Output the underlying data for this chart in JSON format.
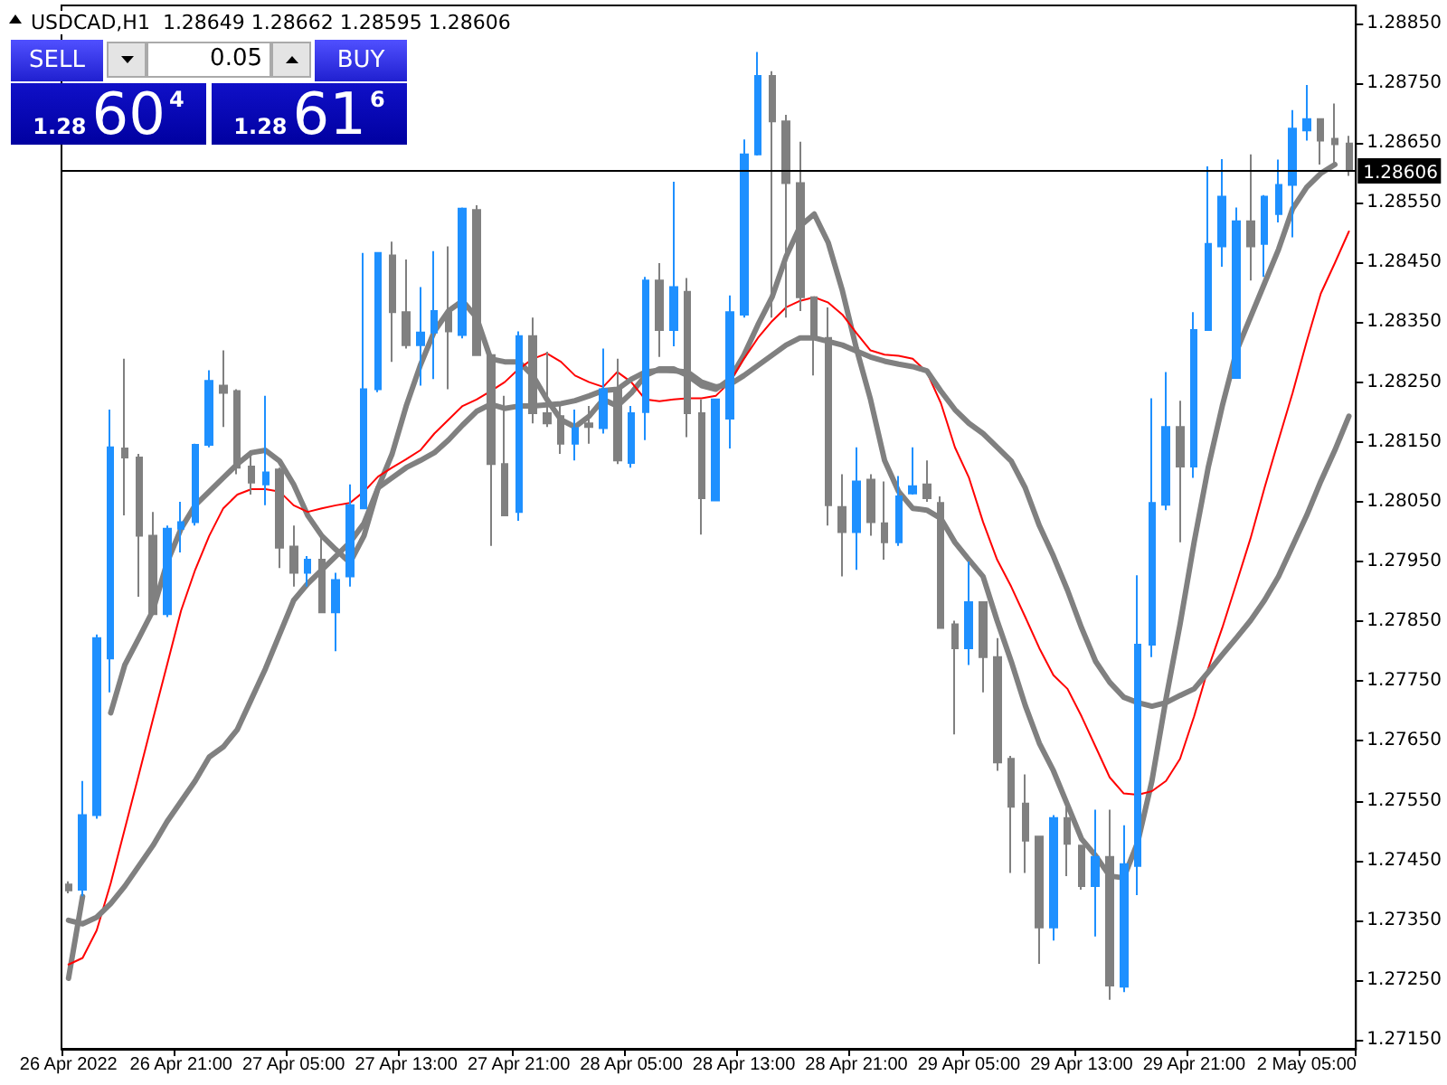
{
  "chart_data": {
    "type": "candlestick",
    "title": "USDCAD,H1  1.28649 1.28662 1.28595 1.28606",
    "annotations": [
      "SELL",
      "0.05",
      "BUY",
      "1.28",
      "60",
      "4",
      "1.28",
      "61",
      "6"
    ],
    "categories": [
      "26 Apr 2022",
      null,
      null,
      null,
      null,
      null,
      null,
      null,
      "26 Apr 21:00",
      null,
      null,
      null,
      null,
      null,
      null,
      null,
      "27 Apr 05:00",
      null,
      null,
      null,
      null,
      null,
      null,
      null,
      "27 Apr 13:00",
      null,
      null,
      null,
      null,
      null,
      null,
      null,
      "27 Apr 21:00",
      null,
      null,
      null,
      null,
      null,
      null,
      null,
      "28 Apr 05:00",
      null,
      null,
      null,
      null,
      null,
      null,
      null,
      "28 Apr 13:00",
      null,
      null,
      null,
      null,
      null,
      null,
      null,
      "28 Apr 21:00",
      null,
      null,
      null,
      null,
      null,
      null,
      null,
      "29 Apr 05:00",
      null,
      null,
      null,
      null,
      null,
      null,
      null,
      "29 Apr 13:00",
      null,
      null,
      null,
      null,
      null,
      null,
      null,
      "29 Apr 21:00",
      null,
      null,
      null,
      null,
      null,
      null,
      null,
      "2 May 05:00",
      null,
      null,
      null
    ],
    "ylim": [
      1.27135,
      1.2888
    ],
    "yticks": [
      {
        "value": 1.2715,
        "label": "1.27150"
      },
      {
        "value": 1.2725,
        "label": "1.27250"
      },
      {
        "value": 1.2735,
        "label": "1.27350"
      },
      {
        "value": 1.2745,
        "label": "1.27450"
      },
      {
        "value": 1.2755,
        "label": "1.27550"
      },
      {
        "value": 1.2765,
        "label": "1.27650"
      },
      {
        "value": 1.2775,
        "label": "1.27750"
      },
      {
        "value": 1.2785,
        "label": "1.27850"
      },
      {
        "value": 1.2795,
        "label": "1.27950"
      },
      {
        "value": 1.2805,
        "label": "1.28050"
      },
      {
        "value": 1.2815,
        "label": "1.28150"
      },
      {
        "value": 1.2825,
        "label": "1.28250"
      },
      {
        "value": 1.2835,
        "label": "1.28350"
      },
      {
        "value": 1.2845,
        "label": "1.28450"
      },
      {
        "value": 1.2855,
        "label": "1.28550"
      },
      {
        "value": 1.2865,
        "label": "1.28650"
      },
      {
        "value": 1.2875,
        "label": "1.28750"
      },
      {
        "value": 1.2885,
        "label": "1.28850"
      }
    ],
    "ref_lines": [
      {
        "axis": "y",
        "value": 1.28606,
        "label": "1.28606",
        "color": "#000000"
      }
    ],
    "series": [
      {
        "ohlc": [
          [
            1.2741,
            1.27415,
            1.27395,
            1.274
          ],
          [
            1.27401,
            1.27583,
            1.2739,
            1.27526
          ],
          [
            1.27526,
            1.27828,
            1.2752,
            1.27822
          ],
          [
            1.27788,
            1.28204,
            1.27731,
            1.28141
          ],
          [
            1.28139,
            1.28289,
            1.28027,
            1.28124
          ],
          [
            1.28124,
            1.2813,
            1.27891,
            1.27993
          ],
          [
            1.27993,
            1.28033,
            1.27862,
            1.27862
          ],
          [
            1.27862,
            1.2801,
            1.27857,
            1.28005
          ],
          [
            1.28005,
            1.2805,
            1.27965,
            1.28016
          ],
          [
            1.28016,
            1.28147,
            1.2801,
            1.28145
          ],
          [
            1.28145,
            1.2827,
            1.28141,
            1.28252
          ],
          [
            1.28244,
            1.28303,
            1.28175,
            1.28232
          ],
          [
            1.28235,
            1.28238,
            1.28096,
            1.28107
          ],
          [
            1.28109,
            1.28136,
            1.28062,
            1.28082
          ],
          [
            1.28079,
            1.28227,
            1.28044,
            1.28099
          ],
          [
            1.28104,
            1.28107,
            1.27939,
            1.27973
          ],
          [
            1.27975,
            1.2801,
            1.27908,
            1.27931
          ],
          [
            1.27931,
            1.27959,
            1.27908,
            1.27953
          ],
          [
            1.27953,
            1.27993,
            1.27865,
            1.27865
          ],
          [
            1.27865,
            1.27931,
            1.278,
            1.27919
          ],
          [
            1.27925,
            1.28079,
            1.27908,
            1.28044
          ],
          [
            1.28039,
            1.28466,
            1.28039,
            1.28238
          ],
          [
            1.28238,
            1.28466,
            1.28233,
            1.28466
          ],
          [
            1.28462,
            1.28485,
            1.28284,
            1.28367
          ],
          [
            1.28367,
            1.28455,
            1.28306,
            1.28312
          ],
          [
            1.28312,
            1.28409,
            1.28244,
            1.28333
          ],
          [
            1.28333,
            1.28469,
            1.28255,
            1.28369
          ],
          [
            1.28367,
            1.28477,
            1.28238,
            1.28335
          ],
          [
            1.28329,
            1.28542,
            1.28323,
            1.2854
          ],
          [
            1.28538,
            1.28546,
            1.28295,
            1.28295
          ],
          [
            1.28295,
            1.28295,
            1.27976,
            1.28113
          ],
          [
            1.28113,
            1.28227,
            1.28027,
            1.28027
          ],
          [
            1.28033,
            1.28335,
            1.28018,
            1.28327
          ],
          [
            1.28327,
            1.28358,
            1.28181,
            1.28198
          ],
          [
            1.28198,
            1.28301,
            1.28175,
            1.28181
          ],
          [
            1.28193,
            1.2821,
            1.2813,
            1.28147
          ],
          [
            1.28147,
            1.28204,
            1.28119,
            1.28173
          ],
          [
            1.28181,
            1.2821,
            1.28147,
            1.28175
          ],
          [
            1.28173,
            1.28306,
            1.28164,
            1.28238
          ],
          [
            1.28238,
            1.28289,
            1.28113,
            1.28119
          ],
          [
            1.28115,
            1.2821,
            1.28107,
            1.28198
          ],
          [
            1.282,
            1.28426,
            1.28153,
            1.2842
          ],
          [
            1.2842,
            1.28449,
            1.28292,
            1.28337
          ],
          [
            1.28337,
            1.28585,
            1.2831,
            1.28409
          ],
          [
            1.28401,
            1.28424,
            1.28158,
            1.28198
          ],
          [
            1.28198,
            1.28221,
            1.27995,
            1.28056
          ],
          [
            1.28052,
            1.28221,
            1.28052,
            1.28221
          ],
          [
            1.28189,
            1.28395,
            1.28139,
            1.28367
          ],
          [
            1.28363,
            1.28656,
            1.28358,
            1.28631
          ],
          [
            1.28631,
            1.28802,
            1.28629,
            1.28762
          ],
          [
            1.28762,
            1.2877,
            1.28358,
            1.28686
          ],
          [
            1.28686,
            1.28697,
            1.28358,
            1.28583
          ],
          [
            1.28583,
            1.28652,
            1.28369,
            1.28392
          ],
          [
            1.28392,
            1.28392,
            1.28261,
            1.28324
          ],
          [
            1.28324,
            1.28375,
            1.2801,
            1.28044
          ],
          [
            1.28041,
            1.28096,
            1.27925,
            1.27999
          ],
          [
            1.27999,
            1.28141,
            1.27936,
            1.28084
          ],
          [
            1.28087,
            1.28096,
            1.27993,
            1.28016
          ],
          [
            1.28014,
            1.28084,
            1.27953,
            1.27982
          ],
          [
            1.27982,
            1.28093,
            1.27976,
            1.28059
          ],
          [
            1.28064,
            1.28141,
            1.28062,
            1.28076
          ],
          [
            1.28079,
            1.28119,
            1.2805,
            1.28056
          ],
          [
            1.28048,
            1.28059,
            1.27839,
            1.27839
          ],
          [
            1.27845,
            1.27851,
            1.27661,
            1.27805
          ],
          [
            1.27805,
            1.2795,
            1.27777,
            1.27882
          ],
          [
            1.27882,
            1.27882,
            1.27731,
            1.2779
          ],
          [
            1.2779,
            1.27822,
            1.276,
            1.27614
          ],
          [
            1.2762,
            1.27625,
            1.27429,
            1.2754
          ],
          [
            1.27545,
            1.27594,
            1.27429,
            1.27483
          ],
          [
            1.2749,
            1.2749,
            1.27277,
            1.27338
          ],
          [
            1.27338,
            1.27526,
            1.27316,
            1.27521
          ],
          [
            1.27521,
            1.27555,
            1.27424,
            1.27478
          ],
          [
            1.27475,
            1.27475,
            1.27401,
            1.27407
          ],
          [
            1.27407,
            1.27535,
            1.27323,
            1.27456
          ],
          [
            1.27456,
            1.27535,
            1.27217,
            1.27241
          ],
          [
            1.27239,
            1.27509,
            1.2723,
            1.27444
          ],
          [
            1.27441,
            1.27927,
            1.27392,
            1.27811
          ],
          [
            1.27811,
            1.28223,
            1.2779,
            1.28048
          ],
          [
            1.28045,
            1.28267,
            1.28036,
            1.28175
          ],
          [
            1.28175,
            1.28219,
            1.27982,
            1.28109
          ],
          [
            1.28109,
            1.28367,
            1.2809,
            1.28337
          ],
          [
            1.28337,
            1.28611,
            1.28337,
            1.28481
          ],
          [
            1.28477,
            1.28623,
            1.28443,
            1.2856
          ],
          [
            1.28257,
            1.28542,
            1.28257,
            1.28519
          ],
          [
            1.28519,
            1.28631,
            1.2842,
            1.28477
          ],
          [
            1.28481,
            1.28563,
            1.28426,
            1.2856
          ],
          [
            1.28531,
            1.28622,
            1.28517,
            1.2858
          ],
          [
            1.2858,
            1.28705,
            1.28492,
            1.28674
          ],
          [
            1.28671,
            1.28747,
            1.28654,
            1.2869
          ],
          [
            1.2869,
            1.2869,
            1.28614,
            1.28654
          ],
          [
            1.28657,
            1.28716,
            1.28614,
            1.28648
          ],
          [
            1.28649,
            1.28662,
            1.28595,
            1.28606
          ]
        ],
        "colors": [
          "#808080",
          "#1e90ff",
          "#1e90ff",
          "#1e90ff",
          "#808080",
          "#808080",
          "#808080",
          "#1e90ff",
          "#1e90ff",
          "#1e90ff",
          "#1e90ff",
          "#808080",
          "#808080",
          "#808080",
          "#1e90ff",
          "#808080",
          "#808080",
          "#1e90ff",
          "#808080",
          "#1e90ff",
          "#1e90ff",
          "#1e90ff",
          "#1e90ff",
          "#808080",
          "#808080",
          "#1e90ff",
          "#1e90ff",
          "#808080",
          "#1e90ff",
          "#808080",
          "#808080",
          "#808080",
          "#1e90ff",
          "#808080",
          "#808080",
          "#808080",
          "#1e90ff",
          "#808080",
          "#1e90ff",
          "#808080",
          "#1e90ff",
          "#1e90ff",
          "#808080",
          "#1e90ff",
          "#808080",
          "#808080",
          "#1e90ff",
          "#1e90ff",
          "#1e90ff",
          "#1e90ff",
          "#808080",
          "#808080",
          "#808080",
          "#808080",
          "#808080",
          "#808080",
          "#1e90ff",
          "#808080",
          "#808080",
          "#1e90ff",
          "#1e90ff",
          "#808080",
          "#808080",
          "#808080",
          "#1e90ff",
          "#808080",
          "#808080",
          "#808080",
          "#808080",
          "#808080",
          "#1e90ff",
          "#808080",
          "#808080",
          "#1e90ff",
          "#808080",
          "#1e90ff",
          "#1e90ff",
          "#1e90ff",
          "#1e90ff",
          "#808080",
          "#1e90ff",
          "#1e90ff",
          "#1e90ff",
          "#1e90ff",
          "#808080",
          "#1e90ff",
          "#1e90ff",
          "#1e90ff",
          "#1e90ff",
          "#808080",
          "#808080",
          "#808080"
        ]
      },
      {
        "type": "line",
        "color": "#808080",
        "values": [
          1.27253,
          1.2739,
          null,
          1.27697,
          1.27777,
          1.27822,
          1.27868,
          1.27948,
          1.28005,
          1.28044,
          1.28067,
          1.2809,
          1.28113,
          1.28132,
          1.28136,
          1.28118,
          1.28079,
          1.28027,
          1.27993,
          1.2797,
          1.27948,
          1.27993,
          1.28073,
          1.2813,
          1.2821,
          1.28278,
          1.28335,
          1.28369,
          1.28386,
          1.28358,
          1.28289,
          1.28284,
          1.28284,
          1.28261,
          1.28221,
          1.28187,
          1.28175,
          1.28193,
          1.28221,
          1.2821,
          1.28232,
          1.28261,
          1.28272,
          1.28272,
          1.28261,
          1.28244,
          1.28238,
          1.28255,
          1.28295,
          1.28346,
          1.28392,
          1.2846,
          1.28511,
          1.28531,
          1.28483,
          1.28403,
          1.28306,
          1.28221,
          1.28119,
          1.28067,
          1.28039,
          1.28036,
          1.28022,
          1.27982,
          1.27953,
          1.27925,
          1.27851,
          1.27783,
          1.27709,
          1.27646,
          1.276,
          1.27543,
          1.27486,
          1.27458,
          1.27424,
          1.27421,
          1.27481,
          1.27583,
          1.2772,
          1.27845,
          1.27982,
          1.28107,
          1.2821,
          1.28301,
          1.28358,
          1.28415,
          1.28472,
          1.2854,
          1.28576,
          1.28599,
          1.28614,
          null
        ]
      },
      {
        "type": "line",
        "color": "#ff0000",
        "values": [
          1.27276,
          1.27287,
          1.27333,
          1.27412,
          1.27503,
          1.27594,
          1.27686,
          1.27777,
          1.27868,
          1.27936,
          1.27993,
          1.28039,
          1.28062,
          1.28071,
          1.28071,
          1.28067,
          1.28044,
          1.28033,
          1.28039,
          1.28044,
          1.28048,
          1.28067,
          1.28092,
          1.28107,
          1.28121,
          1.28136,
          1.28164,
          1.28187,
          1.2821,
          1.28221,
          1.28235,
          1.2825,
          1.28272,
          1.28289,
          1.28298,
          1.28284,
          1.28261,
          1.2825,
          1.28242,
          1.28267,
          1.2825,
          1.28221,
          1.28218,
          1.28221,
          1.28223,
          1.28223,
          1.28227,
          1.2825,
          1.28289,
          1.28324,
          1.28352,
          1.28375,
          1.28386,
          1.28392,
          1.28383,
          1.28363,
          1.28332,
          1.28303,
          1.28296,
          1.28294,
          1.28289,
          1.28267,
          1.28215,
          1.28141,
          1.2809,
          1.28016,
          1.27953,
          1.27908,
          1.27857,
          1.27805,
          1.2776,
          1.27737,
          1.27691,
          1.2764,
          1.27589,
          1.27562,
          1.2756,
          1.27566,
          1.27583,
          1.2762,
          1.27691,
          1.27771,
          1.27839,
          1.27913,
          1.27988,
          1.28073,
          1.28153,
          1.28232,
          1.28318,
          1.28398,
          1.28449,
          1.28502
        ]
      },
      {
        "type": "line",
        "color": "#808080",
        "values": [
          1.2735,
          1.27344,
          1.27355,
          1.27378,
          1.27407,
          1.27441,
          1.27475,
          1.27515,
          1.27549,
          1.27583,
          1.27623,
          1.2764,
          1.27669,
          1.2772,
          1.27771,
          1.27828,
          1.27885,
          1.27913,
          1.27936,
          1.27959,
          1.27982,
          1.28014,
          1.28073,
          1.2809,
          1.28107,
          1.28119,
          1.28132,
          1.28153,
          1.28178,
          1.28201,
          1.28213,
          1.28206,
          1.2821,
          1.2821,
          1.28212,
          1.28214,
          1.28219,
          1.28227,
          1.28236,
          1.28238,
          1.28255,
          1.28267,
          1.2827,
          1.28269,
          1.28267,
          1.2825,
          1.28242,
          1.28246,
          1.28261,
          1.28278,
          1.28295,
          1.28312,
          1.28324,
          1.28324,
          1.28318,
          1.28312,
          1.28302,
          1.28292,
          1.28285,
          1.2828,
          1.28276,
          1.28269,
          1.28235,
          1.28204,
          1.28181,
          1.28164,
          1.28141,
          1.28118,
          1.28073,
          1.2801,
          1.27959,
          1.27902,
          1.27839,
          1.27783,
          1.27748,
          1.27723,
          1.27714,
          1.27708,
          1.27714,
          1.27726,
          1.27737,
          1.27765,
          1.27794,
          1.27822,
          1.27851,
          1.27885,
          1.27925,
          1.27976,
          1.28027,
          1.28084,
          1.28136,
          1.28193
        ]
      }
    ]
  }
}
